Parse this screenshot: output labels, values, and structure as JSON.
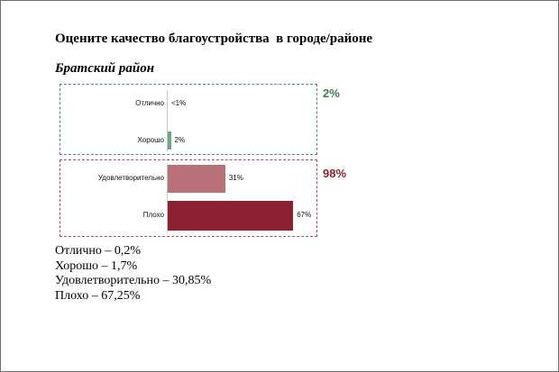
{
  "title": "Оцените качество благоустройства  в городе/районе",
  "subtitle": "Братский район",
  "groups": [
    {
      "total_label": "2%",
      "color": "#3d7a52",
      "border_color": "#4e8a6a"
    },
    {
      "total_label": "98%",
      "color": "#8c2131",
      "border_color": "#b04a5a"
    }
  ],
  "chart_data": {
    "type": "bar",
    "orientation": "horizontal",
    "categories": [
      "Отлично",
      "Хорошо",
      "Удовлетворительно",
      "Плохо"
    ],
    "values": [
      0.2,
      1.7,
      30.85,
      67.25
    ],
    "data_labels": [
      "<1%",
      "2%",
      "31%",
      "67%"
    ],
    "colors": [
      "#6aa886",
      "#6aa886",
      "#b87178",
      "#8c2131"
    ],
    "xlim": [
      0,
      100
    ],
    "grid": false,
    "legend": "none"
  },
  "notes": [
    "Отлично – 0,2%",
    "Хорошо – 1,7%",
    "Удовлетворительно – 30,85%",
    "Плохо – 67,25%"
  ]
}
